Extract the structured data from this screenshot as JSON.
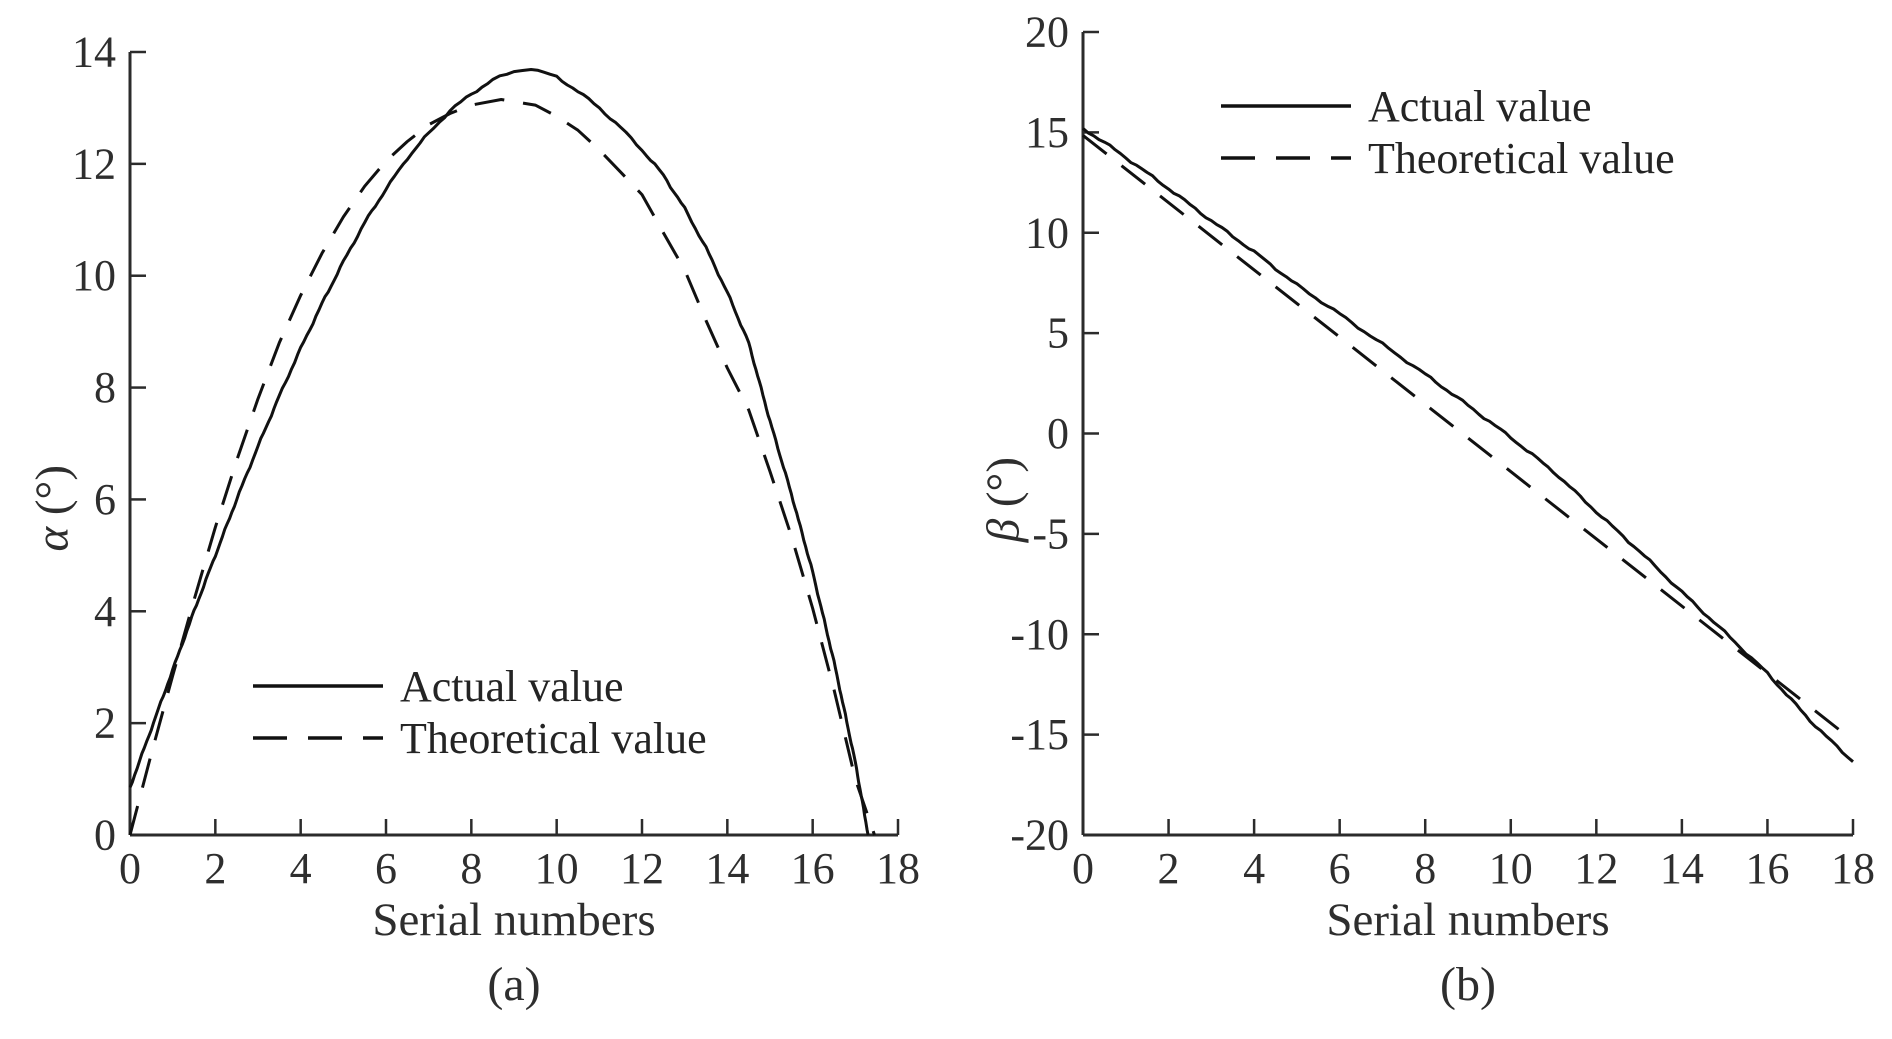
{
  "figure": {
    "background": "#ffffff",
    "text_color": "#2e2e2e",
    "line_color": "#111111"
  },
  "chart_data": [
    {
      "type": "line",
      "panel": "a",
      "caption": "(a)",
      "xlabel": "Serial numbers",
      "ylabel": "α (°)",
      "ylabel_symbol": "α",
      "ylabel_unit": " (°)",
      "xlim": [
        0,
        18
      ],
      "ylim": [
        0,
        14
      ],
      "xticks": [
        0,
        2,
        4,
        6,
        8,
        10,
        12,
        14,
        16,
        18
      ],
      "yticks": [
        0,
        2,
        4,
        6,
        8,
        10,
        12,
        14
      ],
      "grid": false,
      "legend_position": "lower-center",
      "series": [
        {
          "name": "Actual value",
          "style": "solid",
          "noisy": true,
          "points": [
            [
              0,
              0.85
            ],
            [
              0.5,
              1.9
            ],
            [
              1,
              2.95
            ],
            [
              1.5,
              4.0
            ],
            [
              2,
              5.0
            ],
            [
              2.5,
              6.0
            ],
            [
              3,
              6.95
            ],
            [
              3.5,
              7.85
            ],
            [
              4,
              8.7
            ],
            [
              4.5,
              9.5
            ],
            [
              5,
              10.25
            ],
            [
              5.5,
              10.95
            ],
            [
              6,
              11.55
            ],
            [
              6.5,
              12.1
            ],
            [
              7,
              12.55
            ],
            [
              7.5,
              12.95
            ],
            [
              8,
              13.25
            ],
            [
              8.5,
              13.5
            ],
            [
              9,
              13.65
            ],
            [
              9.4,
              13.71
            ],
            [
              10,
              13.55
            ],
            [
              10.5,
              13.3
            ],
            [
              11,
              13.0
            ],
            [
              11.5,
              12.65
            ],
            [
              12,
              12.25
            ],
            [
              12.5,
              11.8
            ],
            [
              13,
              11.2
            ],
            [
              13.5,
              10.5
            ],
            [
              14,
              9.7
            ],
            [
              14.5,
              8.8
            ],
            [
              15,
              7.4
            ],
            [
              15.5,
              6.1
            ],
            [
              16,
              4.7
            ],
            [
              16.5,
              3.1
            ],
            [
              17,
              1.3
            ],
            [
              17.3,
              0
            ]
          ]
        },
        {
          "name": "Theoretical value",
          "style": "dashed",
          "noisy": false,
          "points": [
            [
              0,
              0
            ],
            [
              0.5,
              1.45
            ],
            [
              1,
              2.85
            ],
            [
              1.5,
              4.2
            ],
            [
              2,
              5.5
            ],
            [
              2.5,
              6.7
            ],
            [
              3,
              7.8
            ],
            [
              3.5,
              8.8
            ],
            [
              4,
              9.65
            ],
            [
              4.5,
              10.4
            ],
            [
              5,
              11.05
            ],
            [
              5.5,
              11.6
            ],
            [
              6,
              12.05
            ],
            [
              6.5,
              12.4
            ],
            [
              7,
              12.7
            ],
            [
              7.5,
              12.9
            ],
            [
              8,
              13.05
            ],
            [
              8.7,
              13.15
            ],
            [
              9.5,
              13.05
            ],
            [
              10,
              12.85
            ],
            [
              10.5,
              12.6
            ],
            [
              11,
              12.25
            ],
            [
              11.5,
              11.85
            ],
            [
              12,
              11.45
            ],
            [
              12.5,
              10.77
            ],
            [
              13,
              10.1
            ],
            [
              13.5,
              9.2
            ],
            [
              14,
              8.35
            ],
            [
              14.5,
              7.6
            ],
            [
              15,
              6.5
            ],
            [
              15.5,
              5.35
            ],
            [
              16,
              4.05
            ],
            [
              16.5,
              2.6
            ],
            [
              17,
              1.0
            ],
            [
              17.45,
              0
            ]
          ]
        }
      ]
    },
    {
      "type": "line",
      "panel": "b",
      "caption": "(b)",
      "xlabel": "Serial numbers",
      "ylabel": "β (°)",
      "ylabel_symbol": "β",
      "ylabel_unit": " (°)",
      "xlim": [
        0,
        18
      ],
      "ylim": [
        -20,
        20
      ],
      "xticks": [
        0,
        2,
        4,
        6,
        8,
        10,
        12,
        14,
        16,
        18
      ],
      "yticks": [
        -20,
        -15,
        -10,
        -5,
        0,
        5,
        10,
        15,
        20
      ],
      "grid": false,
      "legend_position": "upper-center",
      "series": [
        {
          "name": "Actual value",
          "style": "solid",
          "noisy": true,
          "points": [
            [
              0,
              15.2
            ],
            [
              0.5,
              14.5
            ],
            [
              1,
              13.75
            ],
            [
              2,
              12.2
            ],
            [
              3,
              10.6
            ],
            [
              4,
              9.05
            ],
            [
              5,
              7.4
            ],
            [
              6,
              5.95
            ],
            [
              7,
              4.45
            ],
            [
              8,
              2.95
            ],
            [
              9,
              1.4
            ],
            [
              10,
              -0.2
            ],
            [
              11,
              -1.9
            ],
            [
              12,
              -3.9
            ],
            [
              13,
              -5.85
            ],
            [
              14,
              -7.9
            ],
            [
              15,
              -9.9
            ],
            [
              16,
              -11.95
            ],
            [
              17,
              -14.3
            ],
            [
              17.5,
              -15.35
            ],
            [
              18,
              -16.35
            ]
          ]
        },
        {
          "name": "Theoretical value",
          "style": "dashed",
          "noisy": false,
          "points": [
            [
              0,
              14.85
            ],
            [
              18,
              -15.3
            ]
          ]
        }
      ]
    }
  ]
}
